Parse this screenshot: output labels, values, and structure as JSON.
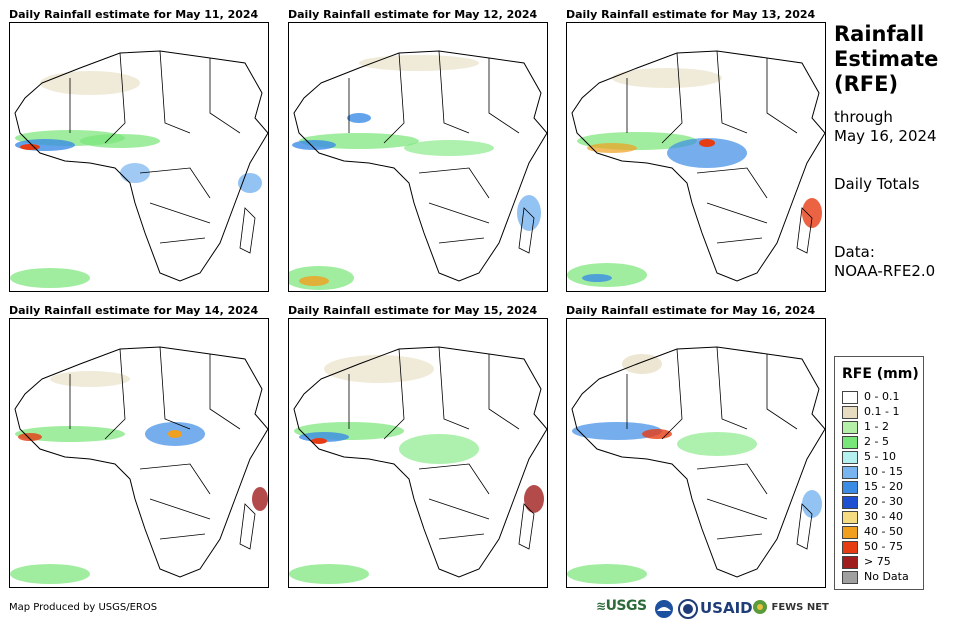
{
  "panels": [
    {
      "title": "Daily Rainfall estimate for May 11, 2024"
    },
    {
      "title": "Daily Rainfall estimate for May 12, 2024"
    },
    {
      "title": "Daily Rainfall estimate for May 13, 2024"
    },
    {
      "title": "Daily Rainfall estimate for May 14, 2024"
    },
    {
      "title": "Daily Rainfall estimate for May 15, 2024"
    },
    {
      "title": "Daily Rainfall estimate for May 16, 2024"
    }
  ],
  "side": {
    "title_line1": "Rainfall",
    "title_line2": "Estimate",
    "title_line3": "(RFE)",
    "through": "through",
    "date": "May 16, 2024",
    "daily": "Daily Totals",
    "data_label": "Data:",
    "data_source": "NOAA-RFE2.0"
  },
  "legend": {
    "title": "RFE (mm)",
    "items": [
      {
        "label": "0 - 0.1",
        "color": "#ffffff"
      },
      {
        "label": "0.1 - 1",
        "color": "#e6dcc0"
      },
      {
        "label": "1 - 2",
        "color": "#b4f0a8"
      },
      {
        "label": "2 - 5",
        "color": "#78e678"
      },
      {
        "label": "5 - 10",
        "color": "#b4f0f0"
      },
      {
        "label": "10 - 15",
        "color": "#78b4f0"
      },
      {
        "label": "15 - 20",
        "color": "#3c8ce6"
      },
      {
        "label": "20 - 30",
        "color": "#1e50d2"
      },
      {
        "label": "30 - 40",
        "color": "#f5dc82"
      },
      {
        "label": "40 - 50",
        "color": "#f0a01e"
      },
      {
        "label": "50 - 75",
        "color": "#e63c14"
      },
      {
        "label": "> 75",
        "color": "#a01e1e"
      },
      {
        "label": "No Data",
        "color": "#a0a0a0"
      }
    ]
  },
  "credit": "Map Produced by USGS/EROS",
  "logos": {
    "usgs": "USGS",
    "usaid": "USAID",
    "fewsnet": "FEWS NET"
  }
}
